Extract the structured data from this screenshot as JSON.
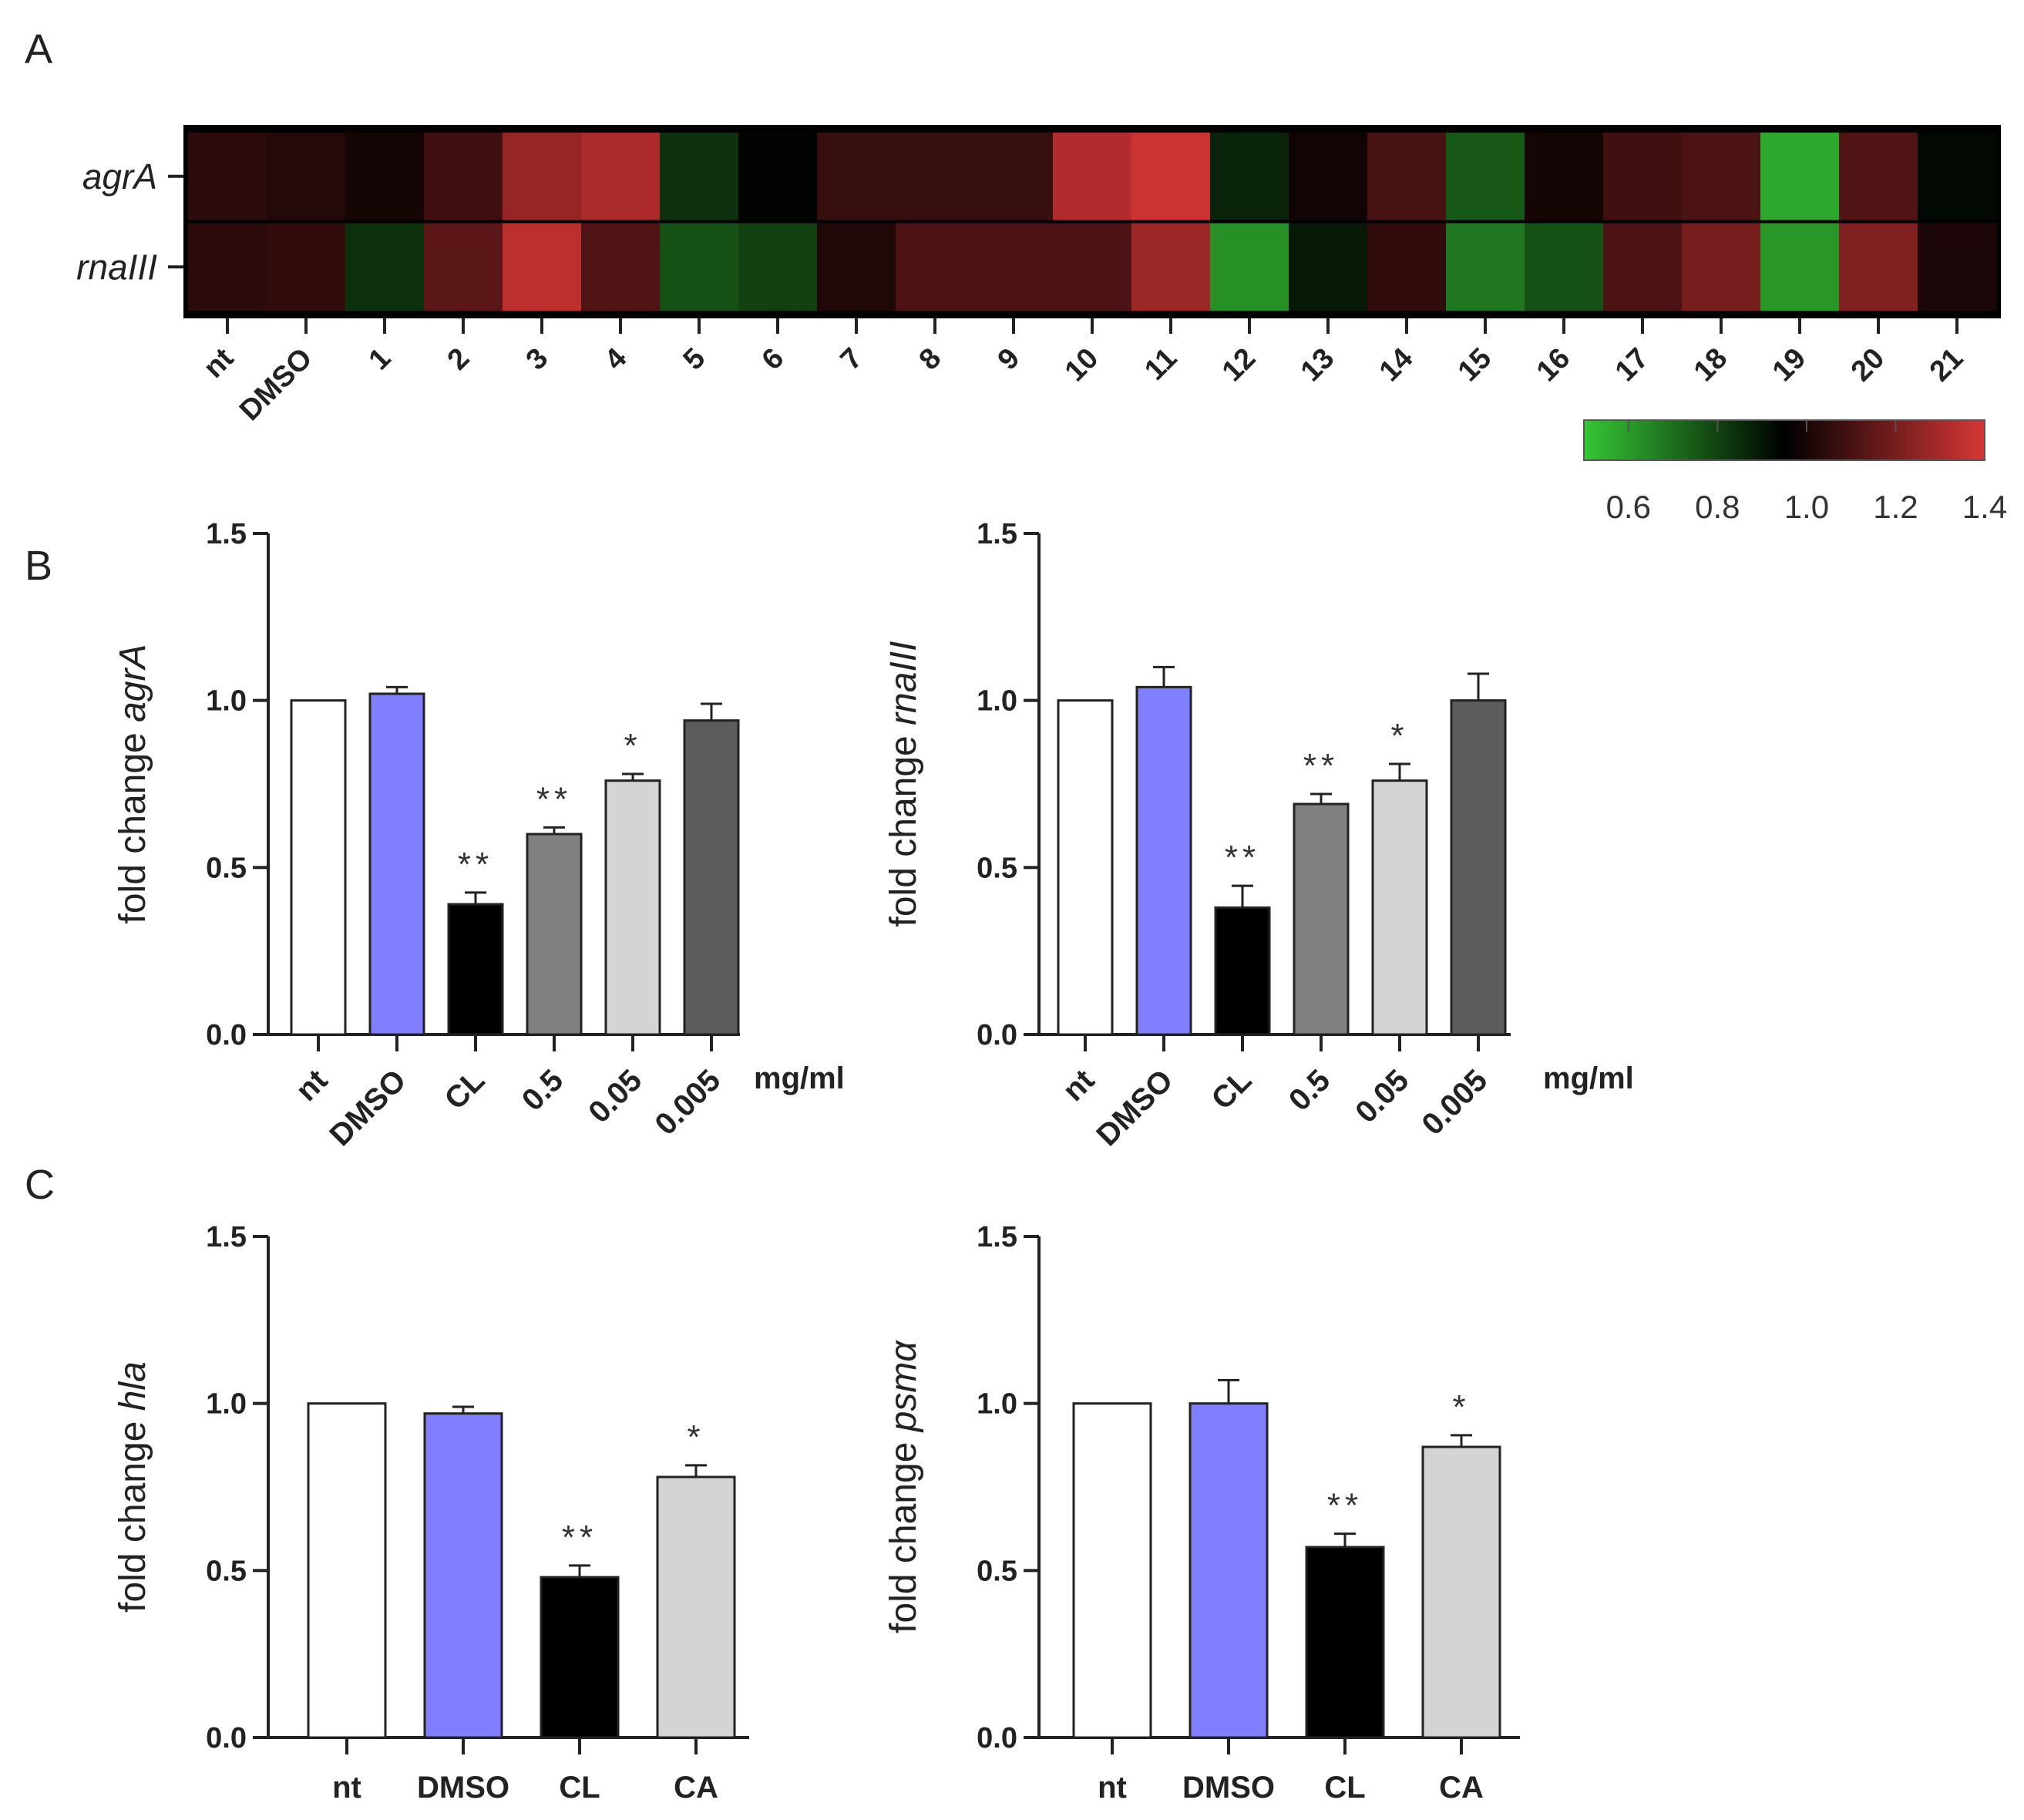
{
  "panels": {
    "A": "A",
    "B": "B",
    "C": "C"
  },
  "colors": {
    "green": "#35c735",
    "black": "#000000",
    "red": "#d63636",
    "nt": "#ffffff",
    "dmso": "#7f7fff",
    "cl": "#000000",
    "c05": "#808080",
    "c005": "#d4d4d4",
    "c0005": "#5c5c5c",
    "ca": "#d4d4d4"
  },
  "chart_data": [
    {
      "id": "A",
      "type": "heatmap",
      "title": "",
      "rows": [
        "agrA",
        "rnaIII"
      ],
      "columns": [
        "nt",
        "DMSO",
        "1",
        "2",
        "3",
        "4",
        "5",
        "6",
        "7",
        "8",
        "9",
        "10",
        "11",
        "12",
        "13",
        "14",
        "15",
        "16",
        "17",
        "18",
        "19",
        "20",
        "21"
      ],
      "values": [
        [
          1.08,
          1.07,
          1.04,
          1.12,
          1.28,
          1.32,
          0.88,
          0.99,
          1.1,
          1.1,
          1.1,
          1.33,
          1.38,
          0.91,
          1.03,
          1.13,
          0.78,
          1.04,
          1.12,
          1.14,
          0.58,
          1.15,
          0.98
        ],
        [
          1.08,
          1.09,
          0.88,
          1.17,
          1.35,
          1.15,
          0.8,
          0.84,
          1.06,
          1.14,
          1.14,
          1.14,
          1.29,
          0.64,
          0.94,
          1.09,
          0.7,
          0.8,
          1.14,
          1.22,
          0.62,
          1.24,
          1.05
        ]
      ],
      "colorbar": {
        "range": [
          0.5,
          1.4
        ],
        "ticks": [
          "0.6",
          "0.8",
          "1.0",
          "1.2",
          "1.4"
        ]
      }
    },
    {
      "id": "B-left",
      "type": "bar",
      "categories": [
        "nt",
        "DMSO",
        "CL",
        "0.5",
        "0.05",
        "0.005"
      ],
      "values": [
        1.0,
        1.02,
        0.39,
        0.6,
        0.76,
        0.94
      ],
      "errors": [
        0.0,
        0.02,
        0.035,
        0.02,
        0.02,
        0.05
      ],
      "significance": [
        "",
        "",
        "**",
        "**",
        "*",
        ""
      ],
      "unit_label": "mg/ml",
      "ylabel_prefix": "fold change ",
      "ylabel_gene": "agrA",
      "ylim": [
        0,
        1.5
      ],
      "yticks": [
        "0.0",
        "0.5",
        "1.0",
        "1.5"
      ]
    },
    {
      "id": "B-right",
      "type": "bar",
      "categories": [
        "nt",
        "DMSO",
        "CL",
        "0.5",
        "0.05",
        "0.005"
      ],
      "values": [
        1.0,
        1.04,
        0.38,
        0.69,
        0.76,
        1.0
      ],
      "errors": [
        0.0,
        0.06,
        0.065,
        0.03,
        0.05,
        0.08
      ],
      "significance": [
        "",
        "",
        "**",
        "**",
        "*",
        ""
      ],
      "unit_label": "mg/ml",
      "ylabel_prefix": "fold change ",
      "ylabel_gene": "rnaIII",
      "ylim": [
        0,
        1.5
      ],
      "yticks": [
        "0.0",
        "0.5",
        "1.0",
        "1.5"
      ]
    },
    {
      "id": "C-left",
      "type": "bar",
      "categories": [
        "nt",
        "DMSO",
        "CL",
        "CA"
      ],
      "values": [
        1.0,
        0.97,
        0.48,
        0.78
      ],
      "errors": [
        0.0,
        0.02,
        0.035,
        0.035
      ],
      "significance": [
        "",
        "",
        "**",
        "*"
      ],
      "ylabel_prefix": "fold change ",
      "ylabel_gene": "hla",
      "ylim": [
        0,
        1.5
      ],
      "yticks": [
        "0.0",
        "0.5",
        "1.0",
        "1.5"
      ]
    },
    {
      "id": "C-right",
      "type": "bar",
      "categories": [
        "nt",
        "DMSO",
        "CL",
        "CA"
      ],
      "values": [
        1.0,
        1.0,
        0.57,
        0.87
      ],
      "errors": [
        0.0,
        0.07,
        0.04,
        0.035
      ],
      "significance": [
        "",
        "",
        "**",
        "*"
      ],
      "ylabel_prefix": "fold change ",
      "ylabel_gene": "psmα",
      "ylim": [
        0,
        1.5
      ],
      "yticks": [
        "0.0",
        "0.5",
        "1.0",
        "1.5"
      ]
    }
  ]
}
